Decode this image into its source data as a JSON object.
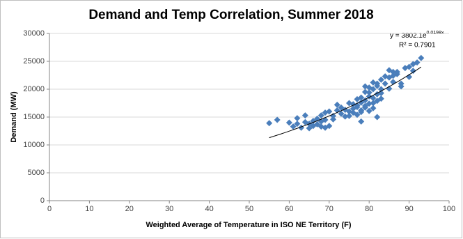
{
  "chart_data": {
    "type": "scatter",
    "title": "Demand and Temp Correlation, Summer 2018",
    "x_label": "Weighted Average of Temperature in ISO NE Territory (F)",
    "y_label": "Demand (MW)",
    "xlim": [
      0,
      100
    ],
    "xticks": [
      0,
      10,
      20,
      30,
      40,
      50,
      60,
      70,
      80,
      90,
      100
    ],
    "ylim": [
      0,
      30000
    ],
    "yticks": [
      0,
      5000,
      10000,
      15000,
      20000,
      25000,
      30000
    ],
    "grid": true,
    "series": [
      {
        "color": "#4a7ebb",
        "marker": "diamond",
        "x": [
          55,
          57,
          60,
          61,
          62,
          62,
          63,
          64,
          64,
          65,
          65,
          66,
          66,
          67,
          67,
          68,
          68,
          68,
          69,
          69,
          69,
          70,
          70,
          71,
          71,
          72,
          72,
          73,
          73,
          74,
          74,
          75,
          75,
          75,
          76,
          76,
          76,
          77,
          77,
          77,
          77,
          78,
          78,
          78,
          78,
          78,
          79,
          79,
          79,
          79,
          79,
          80,
          80,
          80,
          80,
          80,
          81,
          81,
          81,
          81,
          81,
          82,
          82,
          82,
          82,
          82,
          83,
          83,
          83,
          83,
          84,
          84,
          85,
          85,
          85,
          86,
          86,
          86,
          87,
          87,
          88,
          88,
          89,
          90,
          90,
          91,
          91,
          92,
          93
        ],
        "y": [
          13900,
          14500,
          14000,
          13300,
          13800,
          14800,
          13100,
          15300,
          14100,
          13000,
          13800,
          14300,
          13400,
          13700,
          14700,
          13300,
          15300,
          14200,
          15800,
          14500,
          13100,
          16000,
          13400,
          15200,
          14600,
          16200,
          17200,
          15600,
          16700,
          15100,
          16300,
          17500,
          15200,
          16000,
          15800,
          17300,
          16500,
          15400,
          16800,
          18200,
          17100,
          14200,
          16200,
          17600,
          18500,
          15900,
          16700,
          18000,
          20500,
          19500,
          17000,
          16100,
          17400,
          18700,
          20300,
          19400,
          16600,
          18400,
          20000,
          21200,
          17500,
          17900,
          19100,
          21000,
          15000,
          20600,
          18300,
          20000,
          21700,
          19300,
          22300,
          21000,
          22100,
          23400,
          20100,
          23100,
          22400,
          21300,
          22700,
          23100,
          20500,
          21000,
          23800,
          24000,
          22200,
          24500,
          23300,
          24800,
          25600
        ]
      }
    ],
    "trendline": {
      "type": "exponential",
      "a": 3802.1,
      "b": 0.0198,
      "x": [
        55,
        93
      ],
      "equation": "y = 3802.1e",
      "exponent": "0.0198x",
      "r_squared": "R² = 0.7901"
    }
  }
}
